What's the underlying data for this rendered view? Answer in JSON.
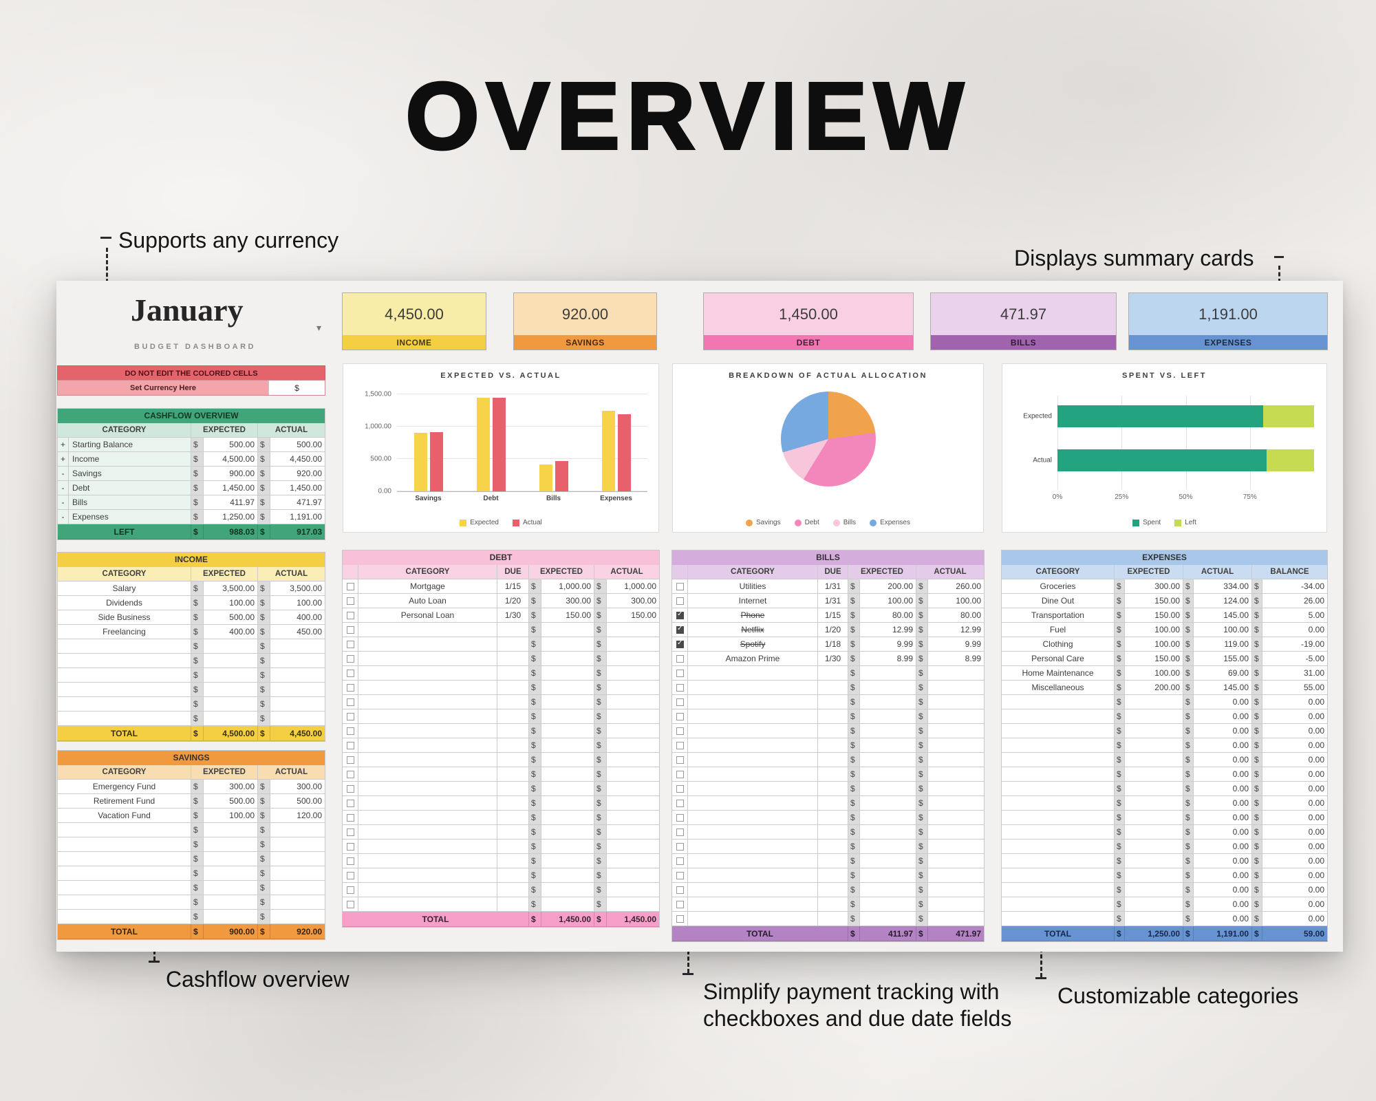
{
  "page": {
    "title": "OVERVIEW",
    "annotations": {
      "currency": "Supports any currency",
      "summary": "Displays summary cards",
      "cashflow": "Cashflow overview",
      "payments": "Simplify payment tracking with\ncheckboxes and due date fields",
      "categories": "Customizable categories"
    }
  },
  "palette": {
    "income_yellow": "#f5cf43",
    "savings_orange": "#f0993f",
    "debt_pink": "#f176b2",
    "bills_purple": "#a263ae",
    "expenses_blue": "#6793d3",
    "cashflow_green": "#42a579",
    "warning_red": "#e5636b"
  },
  "sheet": {
    "month": "January",
    "subtitle": "BUDGET DASHBOARD",
    "currency": "$",
    "summary_cards": [
      {
        "label": "INCOME",
        "value": "4,450.00",
        "body": "#f7eca8",
        "band": "#f5cf43"
      },
      {
        "label": "SAVINGS",
        "value": "920.00",
        "body": "#fadfb4",
        "band": "#f0993f"
      },
      {
        "label": "DEBT",
        "value": "1,450.00",
        "body": "#f9cfe3",
        "band": "#f176b2"
      },
      {
        "label": "BILLS",
        "value": "471.97",
        "body": "#ead2ec",
        "band": "#a263ae"
      },
      {
        "label": "EXPENSES",
        "value": "1,191.00",
        "body": "#bdd6ef",
        "band": "#6793d3"
      }
    ],
    "warning": {
      "banner": "DO NOT EDIT THE COLORED CELLS",
      "currency_label": "Set Currency Here",
      "currency_symbol": "$"
    },
    "cashflow": {
      "title": "CASHFLOW OVERVIEW",
      "headers": [
        "CATEGORY",
        "EXPECTED",
        "ACTUAL"
      ],
      "rows": [
        {
          "sign": "+",
          "category": "Starting Balance",
          "expected": "500.00",
          "actual": "500.00"
        },
        {
          "sign": "+",
          "category": "Income",
          "expected": "4,500.00",
          "actual": "4,450.00"
        },
        {
          "sign": "-",
          "category": "Savings",
          "expected": "900.00",
          "actual": "920.00"
        },
        {
          "sign": "-",
          "category": "Debt",
          "expected": "1,450.00",
          "actual": "1,450.00"
        },
        {
          "sign": "-",
          "category": "Bills",
          "expected": "411.97",
          "actual": "471.97"
        },
        {
          "sign": "-",
          "category": "Expenses",
          "expected": "1,250.00",
          "actual": "1,191.00"
        }
      ],
      "total": {
        "label": "LEFT",
        "expected": "988.03",
        "actual": "917.03"
      }
    },
    "income": {
      "title": "INCOME",
      "headers": [
        "CATEGORY",
        "EXPECTED",
        "ACTUAL"
      ],
      "rows": [
        {
          "category": "Salary",
          "expected": "3,500.00",
          "actual": "3,500.00"
        },
        {
          "category": "Dividends",
          "expected": "100.00",
          "actual": "100.00"
        },
        {
          "category": "Side Business",
          "expected": "500.00",
          "actual": "400.00"
        },
        {
          "category": "Freelancing",
          "expected": "400.00",
          "actual": "450.00"
        },
        {},
        {},
        {},
        {},
        {},
        {}
      ],
      "total": {
        "label": "TOTAL",
        "expected": "4,500.00",
        "actual": "4,450.00"
      }
    },
    "savings": {
      "title": "SAVINGS",
      "headers": [
        "CATEGORY",
        "EXPECTED",
        "ACTUAL"
      ],
      "rows": [
        {
          "category": "Emergency Fund",
          "expected": "300.00",
          "actual": "300.00"
        },
        {
          "category": "Retirement Fund",
          "expected": "500.00",
          "actual": "500.00"
        },
        {
          "category": "Vacation Fund",
          "expected": "100.00",
          "actual": "120.00"
        },
        {},
        {},
        {},
        {},
        {},
        {},
        {}
      ],
      "total": {
        "label": "TOTAL",
        "expected": "900.00",
        "actual": "920.00"
      }
    },
    "debt": {
      "title": "DEBT",
      "headers": [
        "CATEGORY",
        "DUE",
        "EXPECTED",
        "ACTUAL"
      ],
      "rows": [
        {
          "checked": false,
          "category": "Mortgage",
          "due": "1/15",
          "expected": "1,000.00",
          "actual": "1,000.00"
        },
        {
          "checked": false,
          "category": "Auto Loan",
          "due": "1/20",
          "expected": "300.00",
          "actual": "300.00"
        },
        {
          "checked": false,
          "category": "Personal Loan",
          "due": "1/30",
          "expected": "150.00",
          "actual": "150.00"
        },
        {},
        {},
        {},
        {},
        {},
        {},
        {},
        {},
        {},
        {},
        {},
        {},
        {},
        {},
        {},
        {},
        {},
        {},
        {},
        {}
      ],
      "total": {
        "label": "TOTAL",
        "expected": "1,450.00",
        "actual": "1,450.00"
      }
    },
    "bills": {
      "title": "BILLS",
      "headers": [
        "CATEGORY",
        "DUE",
        "EXPECTED",
        "ACTUAL"
      ],
      "rows": [
        {
          "checked": false,
          "category": "Utilities",
          "due": "1/31",
          "expected": "200.00",
          "actual": "260.00"
        },
        {
          "checked": false,
          "category": "Internet",
          "due": "1/31",
          "expected": "100.00",
          "actual": "100.00"
        },
        {
          "checked": true,
          "struck": true,
          "category": "Phone",
          "due": "1/15",
          "expected": "80.00",
          "actual": "80.00"
        },
        {
          "checked": true,
          "struck": true,
          "category": "Netflix",
          "due": "1/20",
          "expected": "12.99",
          "actual": "12.99"
        },
        {
          "checked": true,
          "struck": true,
          "category": "Spotify",
          "due": "1/18",
          "expected": "9.99",
          "actual": "9.99"
        },
        {
          "checked": false,
          "category": "Amazon Prime",
          "due": "1/30",
          "expected": "8.99",
          "actual": "8.99"
        },
        {},
        {},
        {},
        {},
        {},
        {},
        {},
        {},
        {},
        {},
        {},
        {},
        {},
        {},
        {},
        {},
        {},
        {}
      ],
      "total": {
        "label": "TOTAL",
        "expected": "411.97",
        "actual": "471.97"
      }
    },
    "expenses": {
      "title": "EXPENSES",
      "headers": [
        "CATEGORY",
        "EXPECTED",
        "ACTUAL",
        "BALANCE"
      ],
      "rows": [
        {
          "category": "Groceries",
          "expected": "300.00",
          "actual": "334.00",
          "balance": "-34.00"
        },
        {
          "category": "Dine Out",
          "expected": "150.00",
          "actual": "124.00",
          "balance": "26.00"
        },
        {
          "category": "Transportation",
          "expected": "150.00",
          "actual": "145.00",
          "balance": "5.00"
        },
        {
          "category": "Fuel",
          "expected": "100.00",
          "actual": "100.00",
          "balance": "0.00"
        },
        {
          "category": "Clothing",
          "expected": "100.00",
          "actual": "119.00",
          "balance": "-19.00"
        },
        {
          "category": "Personal Care",
          "expected": "150.00",
          "actual": "155.00",
          "balance": "-5.00"
        },
        {
          "category": "Home Maintenance",
          "expected": "100.00",
          "actual": "69.00",
          "balance": "31.00"
        },
        {
          "category": "Miscellaneous",
          "expected": "200.00",
          "actual": "145.00",
          "balance": "55.00"
        },
        {
          "actual": "0.00",
          "balance": "0.00"
        },
        {
          "actual": "0.00",
          "balance": "0.00"
        },
        {
          "actual": "0.00",
          "balance": "0.00"
        },
        {
          "actual": "0.00",
          "balance": "0.00"
        },
        {
          "actual": "0.00",
          "balance": "0.00"
        },
        {
          "actual": "0.00",
          "balance": "0.00"
        },
        {
          "actual": "0.00",
          "balance": "0.00"
        },
        {
          "actual": "0.00",
          "balance": "0.00"
        },
        {
          "actual": "0.00",
          "balance": "0.00"
        },
        {
          "actual": "0.00",
          "balance": "0.00"
        },
        {
          "actual": "0.00",
          "balance": "0.00"
        },
        {
          "actual": "0.00",
          "balance": "0.00"
        },
        {
          "actual": "0.00",
          "balance": "0.00"
        },
        {
          "actual": "0.00",
          "balance": "0.00"
        },
        {
          "actual": "0.00",
          "balance": "0.00"
        },
        {
          "actual": "0.00",
          "balance": "0.00"
        }
      ],
      "total": {
        "label": "TOTAL",
        "expected": "1,250.00",
        "actual": "1,191.00",
        "balance": "59.00"
      }
    }
  },
  "chart_data": [
    {
      "type": "bar",
      "title": "EXPECTED VS. ACTUAL",
      "categories": [
        "Savings",
        "Debt",
        "Bills",
        "Expenses"
      ],
      "series": [
        {
          "name": "Expected",
          "color": "#f6d348",
          "values": [
            900,
            1450,
            411.97,
            1250
          ]
        },
        {
          "name": "Actual",
          "color": "#e8606b",
          "values": [
            920,
            1450,
            471.97,
            1191
          ]
        }
      ],
      "ylim": [
        0,
        1500
      ],
      "yticks": [
        {
          "value": 0,
          "label": "0.00"
        },
        {
          "value": 500,
          "label": "500.00"
        },
        {
          "value": 1000,
          "label": "1,000.00"
        },
        {
          "value": 1500,
          "label": "1,500.00"
        }
      ],
      "legend_position": "bottom"
    },
    {
      "type": "pie",
      "title": "BREAKDOWN OF ACTUAL ALLOCATION",
      "slices": [
        {
          "label": "Savings",
          "value": 920,
          "color": "#f0a24c"
        },
        {
          "label": "Debt",
          "value": 1450,
          "color": "#f387bb"
        },
        {
          "label": "Bills",
          "value": 471.97,
          "color": "#f8c6da"
        },
        {
          "label": "Expenses",
          "value": 1191,
          "color": "#76a9e0"
        }
      ],
      "legend_position": "bottom"
    },
    {
      "type": "bar",
      "subtype": "horizontal_stacked_pct",
      "title": "SPENT VS. LEFT",
      "categories": [
        "Expected",
        "Actual"
      ],
      "series": [
        {
          "name": "Spent",
          "color": "#23a37f",
          "values": [
            4011.97,
            4032.97
          ]
        },
        {
          "name": "Left",
          "color": "#c6da52",
          "values": [
            988.03,
            917.03
          ]
        }
      ],
      "xticks": [
        "0%",
        "25%",
        "50%",
        "75%"
      ],
      "legend_position": "bottom"
    }
  ]
}
